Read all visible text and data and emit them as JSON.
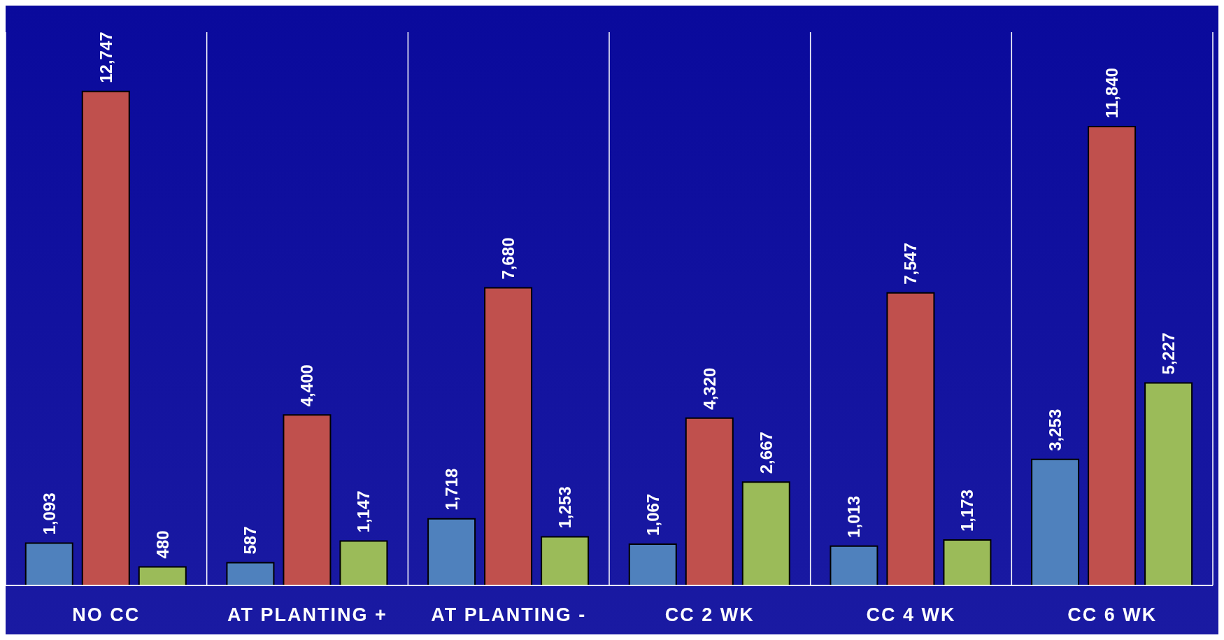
{
  "chart_data": {
    "type": "bar",
    "categories": [
      "NO CC",
      "AT PLANTING +",
      "AT PLANTING -",
      "CC 2 WK",
      "CC 4 WK",
      "CC 6 WK"
    ],
    "series": [
      {
        "color": "#4f81bd",
        "values": [
          1093,
          587,
          1718,
          1067,
          1013,
          3253
        ],
        "value_labels": [
          "1,093",
          "587",
          "1,718",
          "1,067",
          "1,013",
          "3,253"
        ]
      },
      {
        "color": "#c0504d",
        "values": [
          12747,
          4400,
          7680,
          4320,
          7547,
          11840
        ],
        "value_labels": [
          "12,747",
          "4,400",
          "7,680",
          "4,320",
          "7,547",
          "11,840"
        ]
      },
      {
        "color": "#9bbb59",
        "values": [
          480,
          1147,
          1253,
          2667,
          1173,
          5227
        ],
        "value_labels": [
          "480",
          "1,147",
          "1,253",
          "2,667",
          "1,173",
          "5,227"
        ]
      }
    ],
    "grid": "x",
    "legend": false
  }
}
